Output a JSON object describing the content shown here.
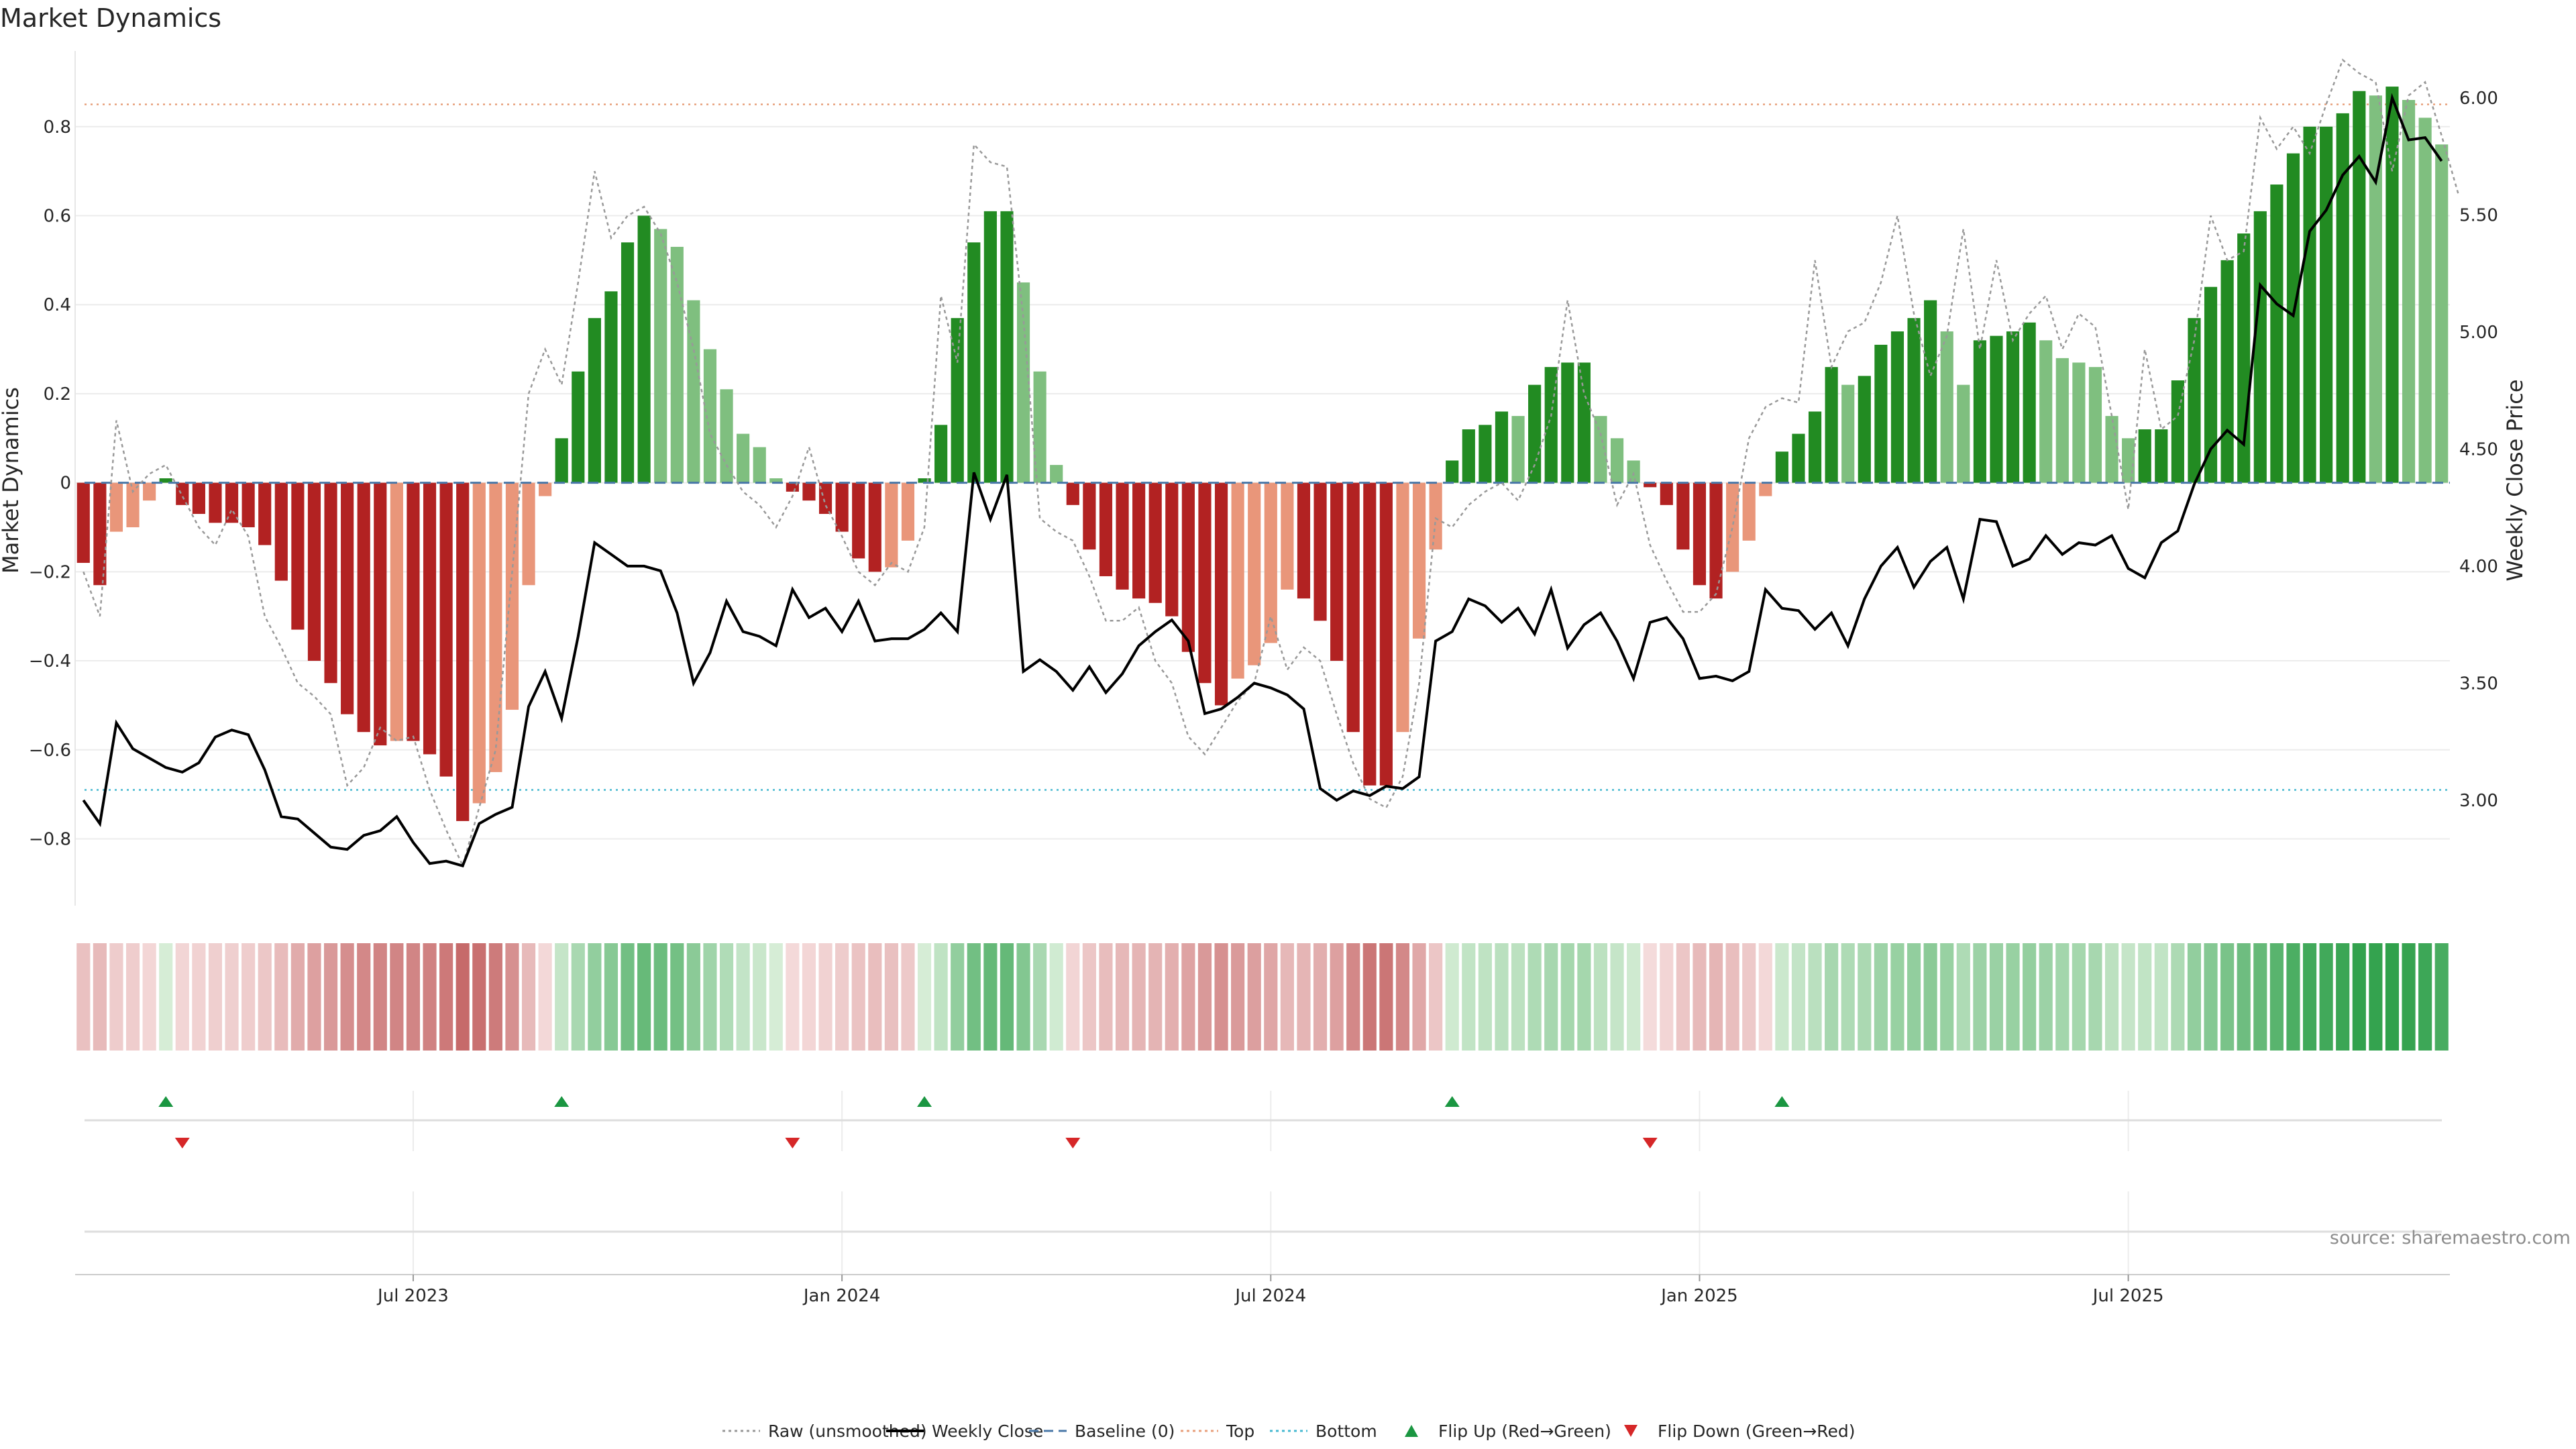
{
  "chart_data": {
    "type": "bar",
    "title": "Market Dynamics",
    "source": "source: sharemaestro.com",
    "ylabel_left": "Market Dynamics",
    "ylabel_right": "Weekly Close Price",
    "ylim_left": [
      -0.95,
      0.97
    ],
    "ylim_right": [
      2.55,
      6.2
    ],
    "left_ticks": [
      "0.8",
      "0.6",
      "0.4",
      "0.2",
      "0",
      "−0.2",
      "−0.4",
      "−0.6",
      "−0.8"
    ],
    "right_ticks": [
      "6.00",
      "5.50",
      "5.00",
      "4.50",
      "4.00",
      "3.50",
      "3.00"
    ],
    "x_ticks": [
      "Jul 2023",
      "Jan 2024",
      "Jul 2024",
      "Jan 2025",
      "Jul 2025"
    ],
    "x_tick_weeks": [
      20,
      46,
      72,
      98,
      124
    ],
    "week_count": 144,
    "top_level": 0.85,
    "bottom_level": -0.69,
    "baseline": 0,
    "grid": true,
    "legend_position": "bottom-center",
    "legend": [
      {
        "label": "Raw (unsmoothed)",
        "style": "dotted",
        "color": "#999999"
      },
      {
        "label": "Weekly Close",
        "style": "solid",
        "color": "#000000"
      },
      {
        "label": "Baseline (0)",
        "style": "dashed",
        "color": "#4a78a8"
      },
      {
        "label": "Top",
        "style": "dotted",
        "color": "#e8a07c"
      },
      {
        "label": "Bottom",
        "style": "dotted",
        "color": "#45b8d0"
      },
      {
        "label": "Flip Up (Red→Green)",
        "style": "triangle-up",
        "color": "#1a9641"
      },
      {
        "label": "Flip Down (Green→Red)",
        "style": "triangle-down",
        "color": "#d62728"
      }
    ],
    "colors": {
      "strong_green": "#228b22",
      "fading_green": "#7fbf7f",
      "strong_red": "#b22222",
      "fading_red": "#e9967a",
      "flip_up": "#1a9641",
      "flip_down": "#d62728"
    },
    "flip_up_weeks": [
      5,
      29,
      51,
      83,
      103
    ],
    "flip_down_weeks": [
      6,
      43,
      60,
      95
    ],
    "smoothed": [
      -0.18,
      -0.23,
      -0.11,
      -0.1,
      -0.04,
      0.01,
      -0.05,
      -0.07,
      -0.09,
      -0.09,
      -0.1,
      -0.14,
      -0.22,
      -0.33,
      -0.4,
      -0.45,
      -0.52,
      -0.56,
      -0.59,
      -0.58,
      -0.58,
      -0.61,
      -0.66,
      -0.76,
      -0.72,
      -0.65,
      -0.51,
      -0.23,
      -0.03,
      0.1,
      0.25,
      0.37,
      0.43,
      0.54,
      0.6,
      0.57,
      0.53,
      0.41,
      0.3,
      0.21,
      0.11,
      0.08,
      0.01,
      -0.02,
      -0.04,
      -0.07,
      -0.11,
      -0.17,
      -0.2,
      -0.19,
      -0.13,
      0.01,
      0.13,
      0.37,
      0.54,
      0.61,
      0.61,
      0.45,
      0.25,
      0.04,
      -0.05,
      -0.15,
      -0.21,
      -0.24,
      -0.26,
      -0.27,
      -0.3,
      -0.38,
      -0.45,
      -0.5,
      -0.44,
      -0.41,
      -0.36,
      -0.24,
      -0.26,
      -0.31,
      -0.4,
      -0.56,
      -0.68,
      -0.68,
      -0.56,
      -0.35,
      -0.15,
      0.05,
      0.12,
      0.13,
      0.16,
      0.15,
      0.22,
      0.26,
      0.27,
      0.27,
      0.15,
      0.1,
      0.05,
      -0.01,
      -0.05,
      -0.15,
      -0.23,
      -0.26,
      -0.2,
      -0.13,
      -0.03,
      0.07,
      0.11,
      0.16,
      0.26,
      0.22,
      0.24,
      0.31,
      0.34,
      0.37,
      0.41,
      0.34,
      0.22,
      0.32,
      0.33,
      0.34,
      0.36,
      0.32,
      0.28,
      0.27,
      0.26,
      0.15,
      0.1,
      0.12,
      0.12,
      0.23,
      0.37,
      0.44,
      0.5,
      0.56,
      0.61,
      0.67,
      0.74,
      0.8,
      0.8,
      0.83,
      0.88,
      0.87,
      0.89,
      0.86,
      0.82,
      0.76
    ],
    "raw": [
      -0.2,
      -0.3,
      0.14,
      -0.02,
      0.02,
      0.04,
      -0.03,
      -0.1,
      -0.14,
      -0.06,
      -0.12,
      -0.3,
      -0.37,
      -0.45,
      -0.48,
      -0.52,
      -0.68,
      -0.64,
      -0.55,
      -0.58,
      -0.57,
      -0.69,
      -0.78,
      -0.86,
      -0.73,
      -0.6,
      -0.2,
      0.2,
      0.3,
      0.22,
      0.45,
      0.7,
      0.55,
      0.6,
      0.62,
      0.56,
      0.45,
      0.3,
      0.11,
      0.04,
      -0.02,
      -0.05,
      -0.1,
      -0.03,
      0.08,
      -0.05,
      -0.12,
      -0.2,
      -0.23,
      -0.18,
      -0.2,
      -0.1,
      0.42,
      0.27,
      0.76,
      0.72,
      0.71,
      0.37,
      -0.08,
      -0.11,
      -0.13,
      -0.21,
      -0.31,
      -0.31,
      -0.28,
      -0.4,
      -0.45,
      -0.57,
      -0.61,
      -0.55,
      -0.49,
      -0.45,
      -0.3,
      -0.42,
      -0.37,
      -0.4,
      -0.52,
      -0.63,
      -0.71,
      -0.73,
      -0.66,
      -0.45,
      -0.08,
      -0.1,
      -0.05,
      -0.02,
      0.0,
      -0.04,
      0.04,
      0.15,
      0.41,
      0.2,
      0.11,
      -0.05,
      0.02,
      -0.14,
      -0.22,
      -0.29,
      -0.29,
      -0.25,
      -0.1,
      0.1,
      0.17,
      0.19,
      0.18,
      0.5,
      0.26,
      0.34,
      0.36,
      0.45,
      0.6,
      0.38,
      0.24,
      0.33,
      0.57,
      0.3,
      0.5,
      0.32,
      0.38,
      0.42,
      0.3,
      0.38,
      0.35,
      0.15,
      -0.06,
      0.3,
      0.12,
      0.15,
      0.32,
      0.6,
      0.5,
      0.52,
      0.82,
      0.75,
      0.8,
      0.74,
      0.85,
      0.95,
      0.92,
      0.9,
      0.7,
      0.87,
      0.9,
      0.78,
      0.65
    ],
    "close": [
      3.0,
      2.9,
      3.33,
      3.22,
      3.18,
      3.14,
      3.12,
      3.16,
      3.27,
      3.3,
      3.28,
      3.13,
      2.93,
      2.92,
      2.86,
      2.8,
      2.79,
      2.85,
      2.87,
      2.93,
      2.82,
      2.73,
      2.74,
      2.72,
      2.9,
      2.94,
      2.97,
      3.4,
      3.55,
      3.35,
      3.7,
      4.1,
      4.05,
      4.0,
      4.0,
      3.98,
      3.8,
      3.5,
      3.63,
      3.85,
      3.72,
      3.7,
      3.66,
      3.9,
      3.78,
      3.82,
      3.72,
      3.85,
      3.68,
      3.69,
      3.69,
      3.73,
      3.8,
      3.72,
      4.4,
      4.2,
      4.39,
      3.55,
      3.6,
      3.55,
      3.47,
      3.57,
      3.46,
      3.54,
      3.66,
      3.72,
      3.77,
      3.68,
      3.37,
      3.39,
      3.44,
      3.5,
      3.48,
      3.45,
      3.39,
      3.05,
      3.0,
      3.04,
      3.02,
      3.06,
      3.05,
      3.1,
      3.68,
      3.72,
      3.86,
      3.83,
      3.76,
      3.82,
      3.71,
      3.9,
      3.65,
      3.75,
      3.8,
      3.68,
      3.52,
      3.76,
      3.78,
      3.69,
      3.52,
      3.53,
      3.51,
      3.55,
      3.9,
      3.82,
      3.81,
      3.73,
      3.8,
      3.66,
      3.86,
      4.0,
      4.08,
      3.91,
      4.02,
      4.08,
      3.86,
      4.2,
      4.19,
      4.0,
      4.03,
      4.13,
      4.05,
      4.1,
      4.09,
      4.13,
      3.99,
      3.95,
      4.1,
      4.15,
      4.35,
      4.5,
      4.58,
      4.52,
      5.2,
      5.12,
      5.07,
      5.43,
      5.52,
      5.67,
      5.75,
      5.64,
      6.0,
      5.82,
      5.83,
      5.73
    ],
    "bars_week_range": [
      0,
      143
    ]
  }
}
